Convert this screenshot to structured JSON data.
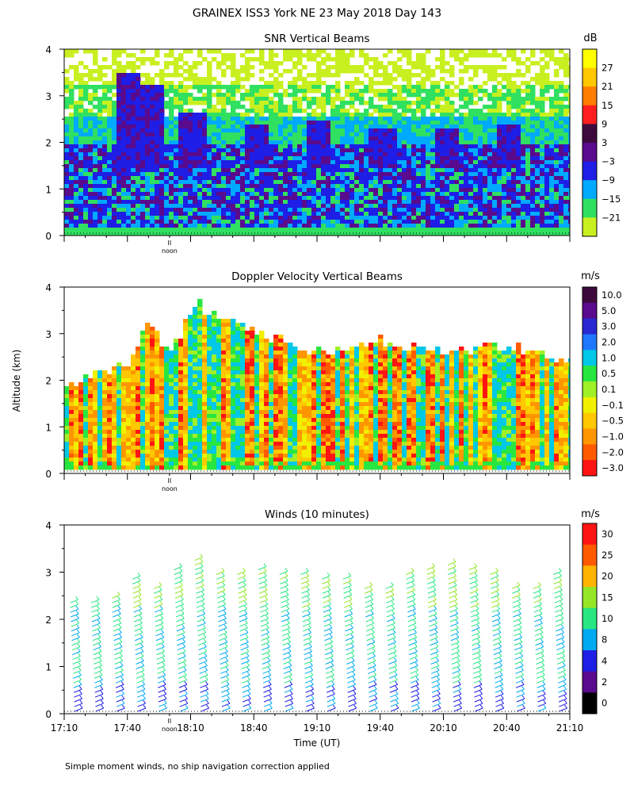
{
  "figure": {
    "title": "GRAINEX ISS3 York NE  23 May 2018 Day 143",
    "ylabel": "Altitude (km)",
    "xlabel": "Time (UT)",
    "footnote": "Simple moment winds, no ship navigation correction applied",
    "noon_label": "noon",
    "noon_marker": "II"
  },
  "chart_data": [
    {
      "type": "heatmap",
      "title": "SNR Vertical Beams",
      "unit": "dB",
      "xlim": [
        "17:10",
        "21:10"
      ],
      "ylim": [
        0,
        4
      ],
      "yticks": [
        "0",
        "1",
        "2",
        "3",
        "4"
      ],
      "colorbar_labels": [
        "27",
        "21",
        "15",
        "9",
        "3",
        "−3",
        "−9",
        "−15",
        "−21"
      ],
      "colors": [
        "#ffff00",
        "#ffc800",
        "#ff7d00",
        "#ff1e1e",
        "#3c0a3c",
        "#5a0a8c",
        "#1e1ee6",
        "#00aaff",
        "#30e060",
        "#c8f020"
      ],
      "rows": [
        {
          "alt_km": 3.8,
          "band": 9
        },
        {
          "alt_km": 3.2,
          "band": 9
        },
        {
          "alt_km": 2.8,
          "band": 8
        },
        {
          "alt_km": 2.4,
          "band": 7
        },
        {
          "alt_km": 2.0,
          "band": 7
        },
        {
          "alt_km": 1.6,
          "band": 6
        },
        {
          "alt_km": 1.2,
          "band": 6
        },
        {
          "alt_km": 0.8,
          "band": 6
        },
        {
          "alt_km": 0.4,
          "band": 6
        },
        {
          "alt_km": 0.15,
          "band": 7
        }
      ],
      "plumes": [
        {
          "time": "17:40",
          "top_km": 3.5
        },
        {
          "time": "17:50",
          "top_km": 3.3
        },
        {
          "time": "18:10",
          "top_km": 2.7
        },
        {
          "time": "18:40",
          "top_km": 2.4
        },
        {
          "time": "19:10",
          "top_km": 2.5
        },
        {
          "time": "19:40",
          "top_km": 2.3
        },
        {
          "time": "20:10",
          "top_km": 2.3
        },
        {
          "time": "20:40",
          "top_km": 2.4
        }
      ]
    },
    {
      "type": "heatmap",
      "title": "Doppler Velocity Vertical Beams",
      "unit": "m/s",
      "xlim": [
        "17:10",
        "21:10"
      ],
      "ylim": [
        0,
        4
      ],
      "yticks": [
        "0",
        "1",
        "2",
        "3",
        "4"
      ],
      "colorbar_labels": [
        "10.0",
        "5.0",
        "3.0",
        "2.0",
        "1.0",
        "0.5",
        "0.1",
        "−0.1",
        "−0.5",
        "−1.0",
        "−2.0",
        "−3.0"
      ],
      "colors": [
        "#3c0a3c",
        "#5a0a8c",
        "#2828d2",
        "#1e78ff",
        "#00c8e6",
        "#28e640",
        "#a0f028",
        "#f0f000",
        "#ffc800",
        "#ff9600",
        "#ff5a00",
        "#ff1414"
      ],
      "cloud_top_km": [
        {
          "time": "17:10",
          "top_km": 2.0
        },
        {
          "time": "17:40",
          "top_km": 2.4
        },
        {
          "time": "17:50",
          "top_km": 3.3
        },
        {
          "time": "18:00",
          "top_km": 2.6
        },
        {
          "time": "18:10",
          "top_km": 3.7
        },
        {
          "time": "18:40",
          "top_km": 3.1
        },
        {
          "time": "19:10",
          "top_km": 2.6
        },
        {
          "time": "19:40",
          "top_km": 2.9
        },
        {
          "time": "20:10",
          "top_km": 2.6
        },
        {
          "time": "20:40",
          "top_km": 2.8
        },
        {
          "time": "21:10",
          "top_km": 2.5
        }
      ]
    },
    {
      "type": "scatter",
      "title": "Winds (10 minutes)",
      "unit": "m/s",
      "xlim": [
        "17:10",
        "21:10"
      ],
      "ylim": [
        0,
        4
      ],
      "yticks": [
        "0",
        "1",
        "2",
        "3",
        "4"
      ],
      "xticks": [
        "17:10",
        "17:40",
        "18:10",
        "18:40",
        "19:10",
        "19:40",
        "20:10",
        "20:40",
        "21:10"
      ],
      "colorbar_labels": [
        "30",
        "25",
        "20",
        "15",
        "10",
        "8",
        "4",
        "2",
        "0"
      ],
      "colors": [
        "#ff1414",
        "#ff5a00",
        "#ffb400",
        "#96e628",
        "#28e682",
        "#00aaf0",
        "#1e1ee6",
        "#5a0a8c",
        "#000000"
      ],
      "profile_times": [
        "17:15",
        "17:25",
        "17:35",
        "17:45",
        "17:55",
        "18:05",
        "18:15",
        "18:25",
        "18:35",
        "18:45",
        "18:55",
        "19:05",
        "19:15",
        "19:25",
        "19:35",
        "19:45",
        "19:55",
        "20:05",
        "20:15",
        "20:25",
        "20:35",
        "20:45",
        "20:55",
        "21:05"
      ],
      "profile_top_km": [
        2.4,
        2.4,
        2.5,
        2.9,
        2.7,
        3.1,
        3.3,
        3.0,
        3.0,
        3.1,
        3.0,
        3.0,
        2.9,
        2.9,
        2.7,
        2.7,
        3.0,
        3.1,
        3.2,
        3.1,
        3.0,
        2.7,
        2.7,
        3.0
      ]
    }
  ]
}
